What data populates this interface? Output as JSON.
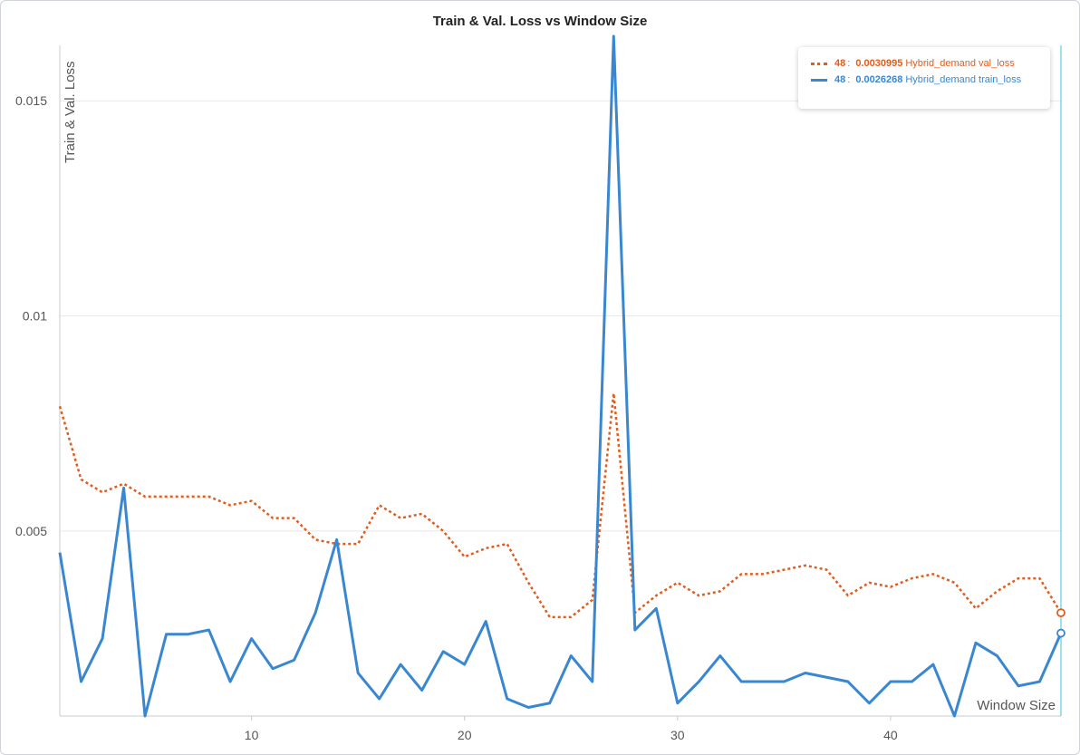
{
  "chart_data": {
    "type": "line",
    "title": "Train & Val. Loss vs Window Size",
    "xlabel": "Window Size",
    "ylabel": "Train & Val. Loss",
    "xlim": [
      1,
      48
    ],
    "ylim": [
      0.0007,
      0.0165
    ],
    "xticks": [
      10,
      20,
      30,
      40
    ],
    "yticks": [
      0.005,
      0.01,
      0.015
    ],
    "ytick_labels": [
      "0.005",
      "0.01",
      "0.015"
    ],
    "grid": true,
    "legend_position": "top-right",
    "x": [
      1,
      2,
      3,
      4,
      5,
      6,
      7,
      8,
      9,
      10,
      11,
      12,
      13,
      14,
      15,
      16,
      17,
      18,
      19,
      20,
      21,
      22,
      23,
      24,
      25,
      26,
      27,
      28,
      29,
      30,
      31,
      32,
      33,
      34,
      35,
      36,
      37,
      38,
      39,
      40,
      41,
      42,
      43,
      44,
      45,
      46,
      47,
      48
    ],
    "series": [
      {
        "name": "Hybrid_demand val_loss",
        "color": "#e05d1e",
        "dash": "dotted",
        "values": [
          0.0079,
          0.0062,
          0.0059,
          0.0061,
          0.0058,
          0.0058,
          0.0058,
          0.0058,
          0.0056,
          0.0057,
          0.0053,
          0.0053,
          0.0048,
          0.0047,
          0.0047,
          0.0056,
          0.0053,
          0.0054,
          0.005,
          0.0044,
          0.0046,
          0.0047,
          0.0038,
          0.003,
          0.003,
          0.0034,
          0.0082,
          0.0031,
          0.0035,
          0.0038,
          0.0035,
          0.0036,
          0.004,
          0.004,
          0.0041,
          0.0042,
          0.0041,
          0.0035,
          0.0038,
          0.0037,
          0.0039,
          0.004,
          0.0038,
          0.0032,
          0.0036,
          0.0039,
          0.0039,
          0.0030995
        ]
      },
      {
        "name": "Hybrid_demand train_loss",
        "color": "#3a87d1",
        "dash": "solid",
        "values": [
          0.0045,
          0.0015,
          0.0025,
          0.006,
          0.0007,
          0.0026,
          0.0026,
          0.0027,
          0.0015,
          0.0025,
          0.0018,
          0.002,
          0.0031,
          0.0048,
          0.0017,
          0.0011,
          0.0019,
          0.0013,
          0.0022,
          0.0019,
          0.0029,
          0.0011,
          0.0009,
          0.001,
          0.0021,
          0.0015,
          0.0165,
          0.0027,
          0.0032,
          0.001,
          0.0015,
          0.0021,
          0.0015,
          0.0015,
          0.0015,
          0.0017,
          0.0016,
          0.0015,
          0.001,
          0.0015,
          0.0015,
          0.0019,
          0.0007,
          0.0024,
          0.0021,
          0.0014,
          0.0015,
          0.0026268
        ]
      }
    ],
    "legend": {
      "step": "48",
      "entries": [
        {
          "value": "0.0030995",
          "label": "Hybrid_demand val_loss",
          "color": "#e05d1e"
        },
        {
          "value": "0.0026268",
          "label": "Hybrid_demand train_loss",
          "color": "#3a87d1"
        }
      ]
    }
  }
}
